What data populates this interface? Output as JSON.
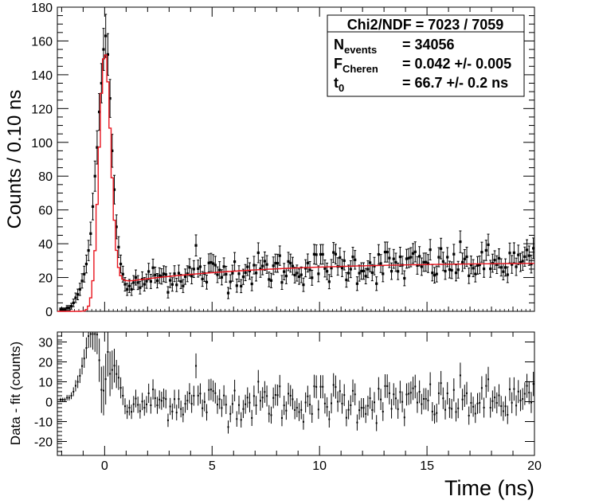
{
  "chart_data": [
    {
      "type": "scatter",
      "name": "main-panel",
      "title": "",
      "xlabel": "",
      "ylabel": "Counts / 0.10 ns",
      "xlim": [
        -2.2,
        20
      ],
      "ylim": [
        0,
        180
      ],
      "yticks": [
        0,
        20,
        40,
        60,
        80,
        100,
        120,
        140,
        160,
        180
      ],
      "xticks": [
        0,
        5,
        10,
        15,
        20
      ],
      "stats_box": {
        "chi2ndf": "Chi2/NDF = 7023 / 7059",
        "nevents_label": "N",
        "nevents_sub": "events",
        "nevents_value": "= 34056",
        "fcheren_label": "F",
        "fcheren_sub": "Cheren",
        "fcheren_value": "= 0.042 +/- 0.005",
        "t0_label": "t",
        "t0_sub": "0",
        "t0_value": "= 66.7 +/- 0.2 ns"
      },
      "fit_color": "#e8141e",
      "data_color": "#000000",
      "model": {
        "peak_center_ns": 0.0,
        "peak_sigma_ns": 0.27,
        "peak_amplitude": 144,
        "baseline_start": 18,
        "baseline_end": 29,
        "baseline_rise_ns": 6.5,
        "bin_width_ns": 0.1
      },
      "data_points": [
        [
          -2.05,
          1
        ],
        [
          -1.95,
          1
        ],
        [
          -1.85,
          1
        ],
        [
          -1.75,
          2
        ],
        [
          -1.65,
          2
        ],
        [
          -1.55,
          3
        ],
        [
          -1.45,
          5
        ],
        [
          -1.35,
          8
        ],
        [
          -1.25,
          10
        ],
        [
          -1.15,
          13
        ],
        [
          -1.05,
          18
        ],
        [
          -0.95,
          22
        ],
        [
          -0.85,
          28
        ],
        [
          -0.75,
          36
        ],
        [
          -0.65,
          46
        ],
        [
          -0.55,
          62
        ],
        [
          -0.45,
          80
        ],
        [
          -0.35,
          97
        ],
        [
          -0.25,
          118
        ],
        [
          -0.15,
          135
        ],
        [
          -0.05,
          155
        ],
        [
          0.05,
          163
        ],
        [
          0.15,
          152
        ],
        [
          0.25,
          126
        ],
        [
          0.35,
          95
        ],
        [
          0.45,
          72
        ],
        [
          0.55,
          50
        ],
        [
          0.65,
          38
        ],
        [
          0.75,
          28
        ],
        [
          0.85,
          22
        ],
        [
          0.95,
          16
        ],
        [
          1.05,
          13
        ],
        [
          1.15,
          15
        ],
        [
          1.25,
          13
        ],
        [
          1.35,
          17
        ],
        [
          1.45,
          20
        ],
        [
          1.55,
          17
        ],
        [
          1.65,
          14
        ],
        [
          1.75,
          19
        ],
        [
          1.85,
          16
        ],
        [
          4.25,
          39
        ]
      ],
      "residuals_outliers": [
        [
          0.15,
          25
        ],
        [
          0.25,
          14
        ],
        [
          4.25,
          18
        ]
      ]
    },
    {
      "type": "scatter",
      "name": "residual-panel",
      "xlabel": "Time (ns)",
      "ylabel": "Data - fit (counts)",
      "xlim": [
        -2.2,
        20
      ],
      "ylim": [
        -27,
        35
      ],
      "yticks": [
        -20,
        -10,
        0,
        10,
        20,
        30
      ],
      "xticks": [
        0,
        5,
        10,
        15,
        20
      ]
    }
  ]
}
